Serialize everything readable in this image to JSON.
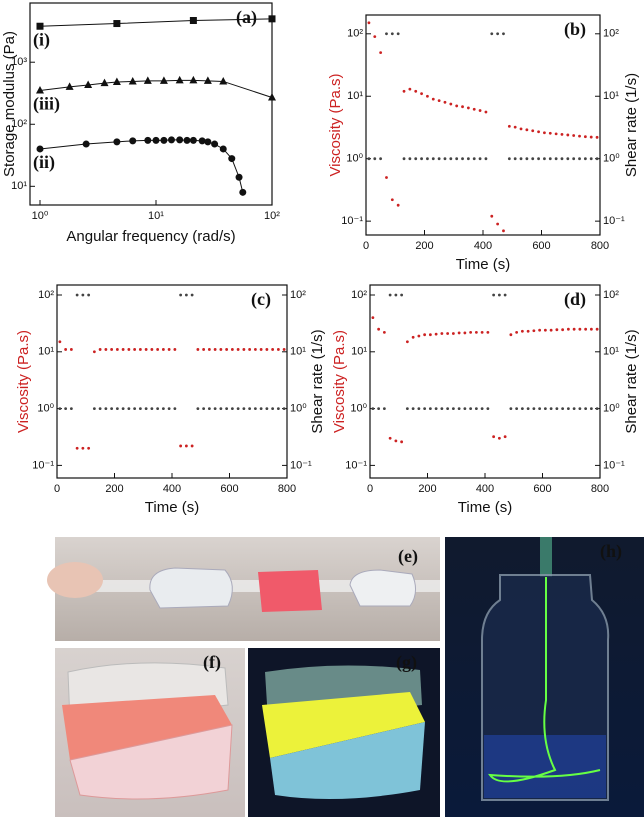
{
  "chart_data": [
    {
      "type": "line",
      "xlabel": "Angular frequency (rad/s)",
      "ylabel": "Storage modulus (Pa)",
      "panel_label": "(a)",
      "xlog": true,
      "ylog": true,
      "xlim": [
        0.82,
        100
      ],
      "ylim": [
        5,
        9000
      ],
      "xticks": [
        {
          "value": 1,
          "label": "10⁰"
        },
        {
          "value": 10,
          "label": "10¹"
        },
        {
          "value": 100,
          "label": "10²"
        }
      ],
      "yticks": [
        {
          "value": 10,
          "label": "10¹"
        },
        {
          "value": 100,
          "label": "10²"
        },
        {
          "value": 1000,
          "label": "10³"
        }
      ],
      "series": [
        {
          "name": "(i)",
          "color": "#111111",
          "marker": "square",
          "x": [
            1,
            4.6,
            21,
            100
          ],
          "values": [
            3800,
            4200,
            4700,
            5000
          ]
        },
        {
          "name": "(iii)",
          "color": "#111111",
          "marker": "triangle",
          "x": [
            1,
            1.8,
            2.6,
            3.6,
            4.6,
            6.3,
            8.5,
            11.7,
            16,
            21,
            28,
            38,
            100
          ],
          "values": [
            350,
            400,
            430,
            460,
            480,
            490,
            500,
            500,
            510,
            510,
            500,
            490,
            270
          ]
        },
        {
          "name": "(ii)",
          "color": "#111111",
          "marker": "circle",
          "x": [
            1,
            2.5,
            4.6,
            6.3,
            8.5,
            10,
            11.7,
            13.6,
            16,
            18.5,
            21,
            25,
            28,
            32,
            38,
            45,
            52,
            56
          ],
          "values": [
            40,
            48,
            52,
            54,
            55,
            55,
            55,
            56,
            56,
            55,
            55,
            54,
            52,
            48,
            40,
            28,
            14,
            8
          ]
        }
      ]
    },
    {
      "type": "scatter",
      "xlabel": "Time (s)",
      "ylabel": "Viscosity (Pa.s)",
      "y2label": "Shear rate (1/s)",
      "panel_label": "(b)",
      "xlog": false,
      "ylog": true,
      "xlim": [
        0,
        800
      ],
      "ylim": [
        0.06,
        200
      ],
      "y2lim": [
        0.06,
        200
      ],
      "xticks": [
        0,
        200,
        400,
        600,
        800
      ],
      "yticks": [
        {
          "value": 0.1,
          "label": "10⁻¹"
        },
        {
          "value": 1,
          "label": "10⁰"
        },
        {
          "value": 10,
          "label": "10¹"
        },
        {
          "value": 100,
          "label": "10²"
        }
      ],
      "y2ticks": [
        {
          "value": 0.1,
          "label": "10⁻¹"
        },
        {
          "value": 1,
          "label": "10⁰"
        },
        {
          "value": 10,
          "label": "10¹"
        },
        {
          "value": 100,
          "label": "10²"
        }
      ],
      "x": [
        10,
        30,
        50,
        70,
        90,
        110,
        130,
        150,
        170,
        190,
        210,
        230,
        250,
        270,
        290,
        310,
        330,
        350,
        370,
        390,
        410,
        430,
        450,
        470,
        490,
        510,
        530,
        550,
        570,
        590,
        610,
        630,
        650,
        670,
        690,
        710,
        730,
        750,
        770,
        790
      ],
      "series": [
        {
          "color": "#cc2222",
          "values": [
            150,
            90,
            50,
            0.5,
            0.22,
            0.18,
            12,
            13,
            12,
            11,
            10,
            9,
            8.5,
            8,
            7.5,
            7,
            6.8,
            6.5,
            6.2,
            5.9,
            5.6,
            0.12,
            0.09,
            0.07,
            3.3,
            3.2,
            3.0,
            2.9,
            2.8,
            2.7,
            2.6,
            2.55,
            2.5,
            2.45,
            2.4,
            2.35,
            2.3,
            2.25,
            2.22,
            2.2
          ]
        },
        {
          "color": "#444444",
          "axis": "y2",
          "values": [
            1,
            1,
            1,
            100,
            100,
            100,
            1,
            1,
            1,
            1,
            1,
            1,
            1,
            1,
            1,
            1,
            1,
            1,
            1,
            1,
            1,
            100,
            100,
            100,
            1,
            1,
            1,
            1,
            1,
            1,
            1,
            1,
            1,
            1,
            1,
            1,
            1,
            1,
            1,
            1
          ]
        }
      ]
    },
    {
      "type": "scatter",
      "xlabel": "Time (s)",
      "ylabel": "Viscosity (Pa.s)",
      "y2label": "Shear rate (1/s)",
      "panel_label": "(c)",
      "xlog": false,
      "ylog": true,
      "xlim": [
        0,
        800
      ],
      "ylim": [
        0.06,
        150
      ],
      "y2lim": [
        0.06,
        150
      ],
      "xticks": [
        0,
        200,
        400,
        600,
        800
      ],
      "yticks": [
        {
          "value": 0.1,
          "label": "10⁻¹"
        },
        {
          "value": 1,
          "label": "10⁰"
        },
        {
          "value": 10,
          "label": "10¹"
        },
        {
          "value": 100,
          "label": "10²"
        }
      ],
      "y2ticks": [
        {
          "value": 0.1,
          "label": "10⁻¹"
        },
        {
          "value": 1,
          "label": "10⁰"
        },
        {
          "value": 10,
          "label": "10¹"
        },
        {
          "value": 100,
          "label": "10²"
        }
      ],
      "x": [
        10,
        30,
        50,
        70,
        90,
        110,
        130,
        150,
        170,
        190,
        210,
        230,
        250,
        270,
        290,
        310,
        330,
        350,
        370,
        390,
        410,
        430,
        450,
        470,
        490,
        510,
        530,
        550,
        570,
        590,
        610,
        630,
        650,
        670,
        690,
        710,
        730,
        750,
        770,
        790
      ],
      "series": [
        {
          "color": "#cc2222",
          "values": [
            15,
            11,
            11,
            0.2,
            0.2,
            0.2,
            10,
            11,
            11,
            11,
            11,
            11,
            11,
            11,
            11,
            11,
            11,
            11,
            11,
            11,
            11,
            0.22,
            0.22,
            0.22,
            11,
            11,
            11,
            11,
            11,
            11,
            11,
            11,
            11,
            11,
            11,
            11,
            11,
            11,
            11,
            11
          ]
        },
        {
          "color": "#444444",
          "axis": "y2",
          "values": [
            1,
            1,
            1,
            100,
            100,
            100,
            1,
            1,
            1,
            1,
            1,
            1,
            1,
            1,
            1,
            1,
            1,
            1,
            1,
            1,
            1,
            100,
            100,
            100,
            1,
            1,
            1,
            1,
            1,
            1,
            1,
            1,
            1,
            1,
            1,
            1,
            1,
            1,
            1,
            1
          ]
        }
      ]
    },
    {
      "type": "scatter",
      "xlabel": "Time (s)",
      "ylabel": "Viscosity (Pa.s)",
      "y2label": "Shear rate (1/s)",
      "panel_label": "(d)",
      "xlog": false,
      "ylog": true,
      "xlim": [
        0,
        800
      ],
      "ylim": [
        0.06,
        150
      ],
      "y2lim": [
        0.06,
        150
      ],
      "xticks": [
        0,
        200,
        400,
        600,
        800
      ],
      "yticks": [
        {
          "value": 0.1,
          "label": "10⁻¹"
        },
        {
          "value": 1,
          "label": "10⁰"
        },
        {
          "value": 10,
          "label": "10¹"
        },
        {
          "value": 100,
          "label": "10²"
        }
      ],
      "y2ticks": [
        {
          "value": 0.1,
          "label": "10⁻¹"
        },
        {
          "value": 1,
          "label": "10⁰"
        },
        {
          "value": 10,
          "label": "10¹"
        },
        {
          "value": 100,
          "label": "10²"
        }
      ],
      "x": [
        10,
        30,
        50,
        70,
        90,
        110,
        130,
        150,
        170,
        190,
        210,
        230,
        250,
        270,
        290,
        310,
        330,
        350,
        370,
        390,
        410,
        430,
        450,
        470,
        490,
        510,
        530,
        550,
        570,
        590,
        610,
        630,
        650,
        670,
        690,
        710,
        730,
        750,
        770,
        790
      ],
      "series": [
        {
          "color": "#cc2222",
          "values": [
            40,
            25,
            22,
            0.3,
            0.27,
            0.26,
            15,
            18,
            19,
            20,
            20,
            20.5,
            21,
            21,
            21,
            21.5,
            21.5,
            22,
            22,
            22,
            22,
            0.32,
            0.3,
            0.32,
            20,
            22,
            23,
            23,
            23.5,
            24,
            24,
            24,
            24.5,
            24.5,
            25,
            25,
            25,
            25,
            25,
            25
          ]
        },
        {
          "color": "#444444",
          "axis": "y2",
          "values": [
            1,
            1,
            1,
            100,
            100,
            100,
            1,
            1,
            1,
            1,
            1,
            1,
            1,
            1,
            1,
            1,
            1,
            1,
            1,
            1,
            1,
            100,
            100,
            100,
            1,
            1,
            1,
            1,
            1,
            1,
            1,
            1,
            1,
            1,
            1,
            1,
            1,
            1,
            1,
            1
          ]
        }
      ]
    }
  ],
  "photos": [
    {
      "label": "(e)"
    },
    {
      "label": "(f)"
    },
    {
      "label": "(g)"
    },
    {
      "label": "(h)"
    }
  ]
}
